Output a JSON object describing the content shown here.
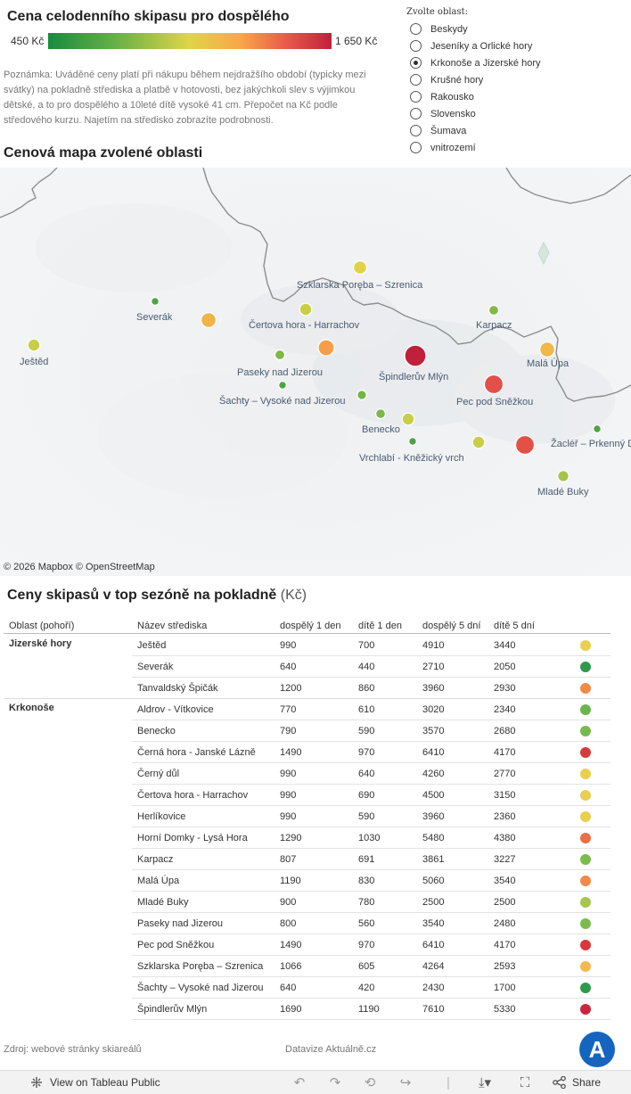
{
  "header": {
    "title": "Cena celodenního skipasu pro dospělého",
    "legend_min": "450 Kč",
    "legend_max": "1 650 Kč",
    "note": "Poznámka: Uváděné ceny platí při nákupu během nejdražšího období (typicky mezi svátky) na pokladně střediska a platbě v hotovosti, bez jakýchkoli slev s výjimkou dětské, a to pro dospělého a 10leté dítě vysoké 41 cm. Přepočet na Kč podle středového kurzu. Najetím na středisko zobrazíte podrobnosti."
  },
  "region_filter": {
    "title": "Zvolte oblast:",
    "options": [
      {
        "label": "Beskydy",
        "selected": false
      },
      {
        "label": "Jeseníky a Orlické hory",
        "selected": false
      },
      {
        "label": "Krkonoše a Jizerské hory",
        "selected": true
      },
      {
        "label": "Krušné hory",
        "selected": false
      },
      {
        "label": "Rakousko",
        "selected": false
      },
      {
        "label": "Slovensko",
        "selected": false
      },
      {
        "label": "Šumava",
        "selected": false
      },
      {
        "label": "vnitrozemí",
        "selected": false
      }
    ]
  },
  "map": {
    "title": "Cenová mapa zvolené oblasti",
    "attribution": "© 2026 Mapbox  © OpenStreetMap",
    "price_scale": {
      "min": 450,
      "max": 1650,
      "unit": "Kč"
    },
    "labels": [
      "Szklarska Poręba – Szrenica",
      "Severák",
      "Čertova hora - Harrachov",
      "Karpacz",
      "Ještěd",
      "Paseky nad Jizerou",
      "Špindlerův Mlýn",
      "Malá Úpa",
      "Šachty – Vysoké nad Jizerou",
      "Pec pod Sněžkou",
      "Benecko",
      "Vrchlabí - Kněžický vrch",
      "Žacléř – Prkenný D",
      "Mladé Buky"
    ],
    "resorts": [
      {
        "name": "Szklarska Poręba – Szrenica",
        "price": 1066
      },
      {
        "name": "Severák",
        "price": 640
      },
      {
        "name": "Tanvaldský Špičák",
        "price": 1200
      },
      {
        "name": "Čertova hora - Harrachov",
        "price": 990
      },
      {
        "name": "Karpacz",
        "price": 807
      },
      {
        "name": "Ještěd",
        "price": 990
      },
      {
        "name": "Paseky nad Jizerou",
        "price": 800
      },
      {
        "name": "Horní Domky - Lysá Hora",
        "price": 1290
      },
      {
        "name": "Špindlerův Mlýn",
        "price": 1690
      },
      {
        "name": "Malá Úpa",
        "price": 1190
      },
      {
        "name": "Šachty – Vysoké nad Jizerou",
        "price": 640
      },
      {
        "name": "Aldrov - Vítkovice",
        "price": 770
      },
      {
        "name": "Pec pod Sněžkou",
        "price": 1490
      },
      {
        "name": "Benecko",
        "price": 790
      },
      {
        "name": "Herlíkovice",
        "price": 990
      },
      {
        "name": "Černý důl",
        "price": 990
      },
      {
        "name": "Vrchlabí - Kněžický vrch",
        "price": 640
      },
      {
        "name": "Černá hora - Janské Lázně",
        "price": 1490
      },
      {
        "name": "Žacléř – Prkenný Důl",
        "price": 640
      },
      {
        "name": "Mladé Buky",
        "price": 900
      }
    ]
  },
  "table": {
    "title": "Ceny skipasů v top sezóně na pokladně",
    "title_unit": "(Kč)",
    "columns": [
      "Oblast (pohoří)",
      "Název střediska",
      "dospělý 1 den",
      "dítě 1 den",
      "dospělý 5 dní",
      "dítě 5 dní"
    ],
    "groups": [
      {
        "name": "Jizerské hory",
        "rows": [
          {
            "name": "Ještěd",
            "a1": "990",
            "c1": "700",
            "a5": "4910",
            "c5": "3440",
            "color": "#e8cf4e"
          },
          {
            "name": "Severák",
            "a1": "640",
            "c1": "440",
            "a5": "2710",
            "c5": "2050",
            "color": "#2e9a4b"
          },
          {
            "name": "Tanvaldský Špičák",
            "a1": "1200",
            "c1": "860",
            "a5": "3960",
            "c5": "2930",
            "color": "#f08a45"
          }
        ]
      },
      {
        "name": "Krkonoše",
        "rows": [
          {
            "name": "Aldrov - Vítkovice",
            "a1": "770",
            "c1": "610",
            "a5": "3020",
            "c5": "2340",
            "color": "#6bb54c"
          },
          {
            "name": "Benecko",
            "a1": "790",
            "c1": "590",
            "a5": "3570",
            "c5": "2680",
            "color": "#77b94d"
          },
          {
            "name": "Černá hora - Janské Lázně",
            "a1": "1490",
            "c1": "970",
            "a5": "6410",
            "c5": "4170",
            "color": "#d63a3e"
          },
          {
            "name": "Černý důl",
            "a1": "990",
            "c1": "640",
            "a5": "4260",
            "c5": "2770",
            "color": "#e8cf4e"
          },
          {
            "name": "Čertova hora - Harrachov",
            "a1": "990",
            "c1": "690",
            "a5": "4500",
            "c5": "3150",
            "color": "#e8cf4e"
          },
          {
            "name": "Herlíkovice",
            "a1": "990",
            "c1": "590",
            "a5": "3960",
            "c5": "2360",
            "color": "#e8cf4e"
          },
          {
            "name": "Horní Domky - Lysá Hora",
            "a1": "1290",
            "c1": "1030",
            "a5": "5480",
            "c5": "4380",
            "color": "#ec6f45"
          },
          {
            "name": "Karpacz",
            "a1": "807",
            "c1": "691",
            "a5": "3861",
            "c5": "3227",
            "color": "#7cbb4c"
          },
          {
            "name": "Malá Úpa",
            "a1": "1190",
            "c1": "830",
            "a5": "5060",
            "c5": "3540",
            "color": "#f08a45"
          },
          {
            "name": "Mladé Buky",
            "a1": "900",
            "c1": "780",
            "a5": "2500",
            "c5": "2500",
            "color": "#a6c64f"
          },
          {
            "name": "Paseky nad Jizerou",
            "a1": "800",
            "c1": "560",
            "a5": "3540",
            "c5": "2480",
            "color": "#7cbb4c"
          },
          {
            "name": "Pec pod Sněžkou",
            "a1": "1490",
            "c1": "970",
            "a5": "6410",
            "c5": "4170",
            "color": "#d63a3e"
          },
          {
            "name": "Szklarska Poręba – Szrenica",
            "a1": "1066",
            "c1": "605",
            "a5": "4264",
            "c5": "2593",
            "color": "#f5b84d"
          },
          {
            "name": "Šachty – Vysoké nad Jizerou",
            "a1": "640",
            "c1": "420",
            "a5": "2430",
            "c5": "1700",
            "color": "#2e9a4b"
          },
          {
            "name": "Špindlerův Mlýn",
            "a1": "1690",
            "c1": "1190",
            "a5": "7610",
            "c5": "5330",
            "color": "#c9283c"
          }
        ]
      }
    ]
  },
  "footer": {
    "source": "Zdroj: webové stránky skiareálů",
    "credit": "Datavize Aktuálně.cz",
    "logo": "A",
    "view_label": "View on Tableau Public",
    "share_label": "Share"
  }
}
